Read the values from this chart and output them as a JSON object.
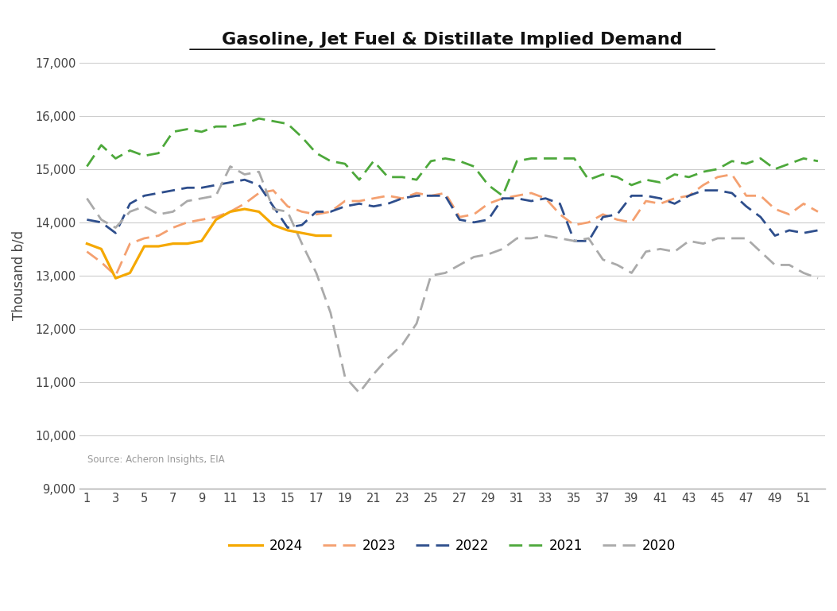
{
  "title": "Gasoline, Jet Fuel & Distillate Implied Demand",
  "ylabel": "Thousand b/d",
  "source_text": "Source: Acheron Insights, EIA",
  "ylim": [
    9000,
    17000
  ],
  "yticks": [
    9000,
    10000,
    11000,
    12000,
    13000,
    14000,
    15000,
    16000,
    17000
  ],
  "xticks": [
    1,
    3,
    5,
    7,
    9,
    11,
    13,
    15,
    17,
    19,
    21,
    23,
    25,
    27,
    29,
    31,
    33,
    35,
    37,
    39,
    41,
    43,
    45,
    47,
    49,
    51
  ],
  "xlim": [
    0.5,
    52.5
  ],
  "series": {
    "2024": {
      "color": "#F5A800",
      "linestyle": "solid",
      "linewidth": 2.3,
      "x": [
        1,
        2,
        3,
        4,
        5,
        6,
        7,
        8,
        9,
        10,
        11,
        12,
        13,
        14,
        15,
        16,
        17,
        18
      ],
      "y": [
        13600,
        13500,
        12950,
        13050,
        13550,
        13550,
        13600,
        13600,
        13650,
        14050,
        14200,
        14250,
        14200,
        13950,
        13850,
        13800,
        13750,
        13750
      ]
    },
    "2023": {
      "color": "#F4A070",
      "linestyle": "dashed",
      "linewidth": 2.0,
      "x": [
        1,
        2,
        3,
        4,
        5,
        6,
        7,
        8,
        9,
        10,
        11,
        12,
        13,
        14,
        15,
        16,
        17,
        18,
        19,
        20,
        21,
        22,
        23,
        24,
        25,
        26,
        27,
        28,
        29,
        30,
        31,
        32,
        33,
        34,
        35,
        36,
        37,
        38,
        39,
        40,
        41,
        42,
        43,
        44,
        45,
        46,
        47,
        48,
        49,
        50,
        51,
        52
      ],
      "y": [
        13450,
        13250,
        13000,
        13600,
        13700,
        13750,
        13900,
        14000,
        14050,
        14100,
        14200,
        14350,
        14550,
        14600,
        14300,
        14200,
        14150,
        14200,
        14400,
        14400,
        14450,
        14500,
        14450,
        14550,
        14500,
        14550,
        14100,
        14150,
        14350,
        14450,
        14500,
        14550,
        14450,
        14150,
        13950,
        14000,
        14150,
        14050,
        14000,
        14400,
        14350,
        14450,
        14500,
        14700,
        14850,
        14900,
        14500,
        14500,
        14250,
        14150,
        14350,
        14200
      ]
    },
    "2022": {
      "color": "#2E4E8C",
      "linestyle": "dashed",
      "linewidth": 2.0,
      "x": [
        1,
        2,
        3,
        4,
        5,
        6,
        7,
        8,
        9,
        10,
        11,
        12,
        13,
        14,
        15,
        16,
        17,
        18,
        19,
        20,
        21,
        22,
        23,
        24,
        25,
        26,
        27,
        28,
        29,
        30,
        31,
        32,
        33,
        34,
        35,
        36,
        37,
        38,
        39,
        40,
        41,
        42,
        43,
        44,
        45,
        46,
        47,
        48,
        49,
        50,
        51,
        52
      ],
      "y": [
        14050,
        14000,
        13800,
        14350,
        14500,
        14550,
        14600,
        14650,
        14650,
        14700,
        14750,
        14800,
        14700,
        14300,
        13900,
        13950,
        14200,
        14200,
        14300,
        14350,
        14300,
        14350,
        14450,
        14500,
        14500,
        14500,
        14050,
        14000,
        14050,
        14450,
        14450,
        14400,
        14450,
        14350,
        13650,
        13650,
        14100,
        14150,
        14500,
        14500,
        14450,
        14350,
        14500,
        14600,
        14600,
        14550,
        14300,
        14100,
        13750,
        13850,
        13800,
        13850
      ]
    },
    "2021": {
      "color": "#4DA83B",
      "linestyle": "dashed",
      "linewidth": 2.0,
      "x": [
        1,
        2,
        3,
        4,
        5,
        6,
        7,
        8,
        9,
        10,
        11,
        12,
        13,
        14,
        15,
        16,
        17,
        18,
        19,
        20,
        21,
        22,
        23,
        24,
        25,
        26,
        27,
        28,
        29,
        30,
        31,
        32,
        33,
        34,
        35,
        36,
        37,
        38,
        39,
        40,
        41,
        42,
        43,
        44,
        45,
        46,
        47,
        48,
        49,
        50,
        51,
        52
      ],
      "y": [
        15050,
        15450,
        15200,
        15350,
        15250,
        15300,
        15700,
        15750,
        15700,
        15800,
        15800,
        15850,
        15950,
        15900,
        15850,
        15600,
        15300,
        15150,
        15100,
        14800,
        15150,
        14850,
        14850,
        14800,
        15150,
        15200,
        15150,
        15050,
        14700,
        14500,
        15150,
        15200,
        15200,
        15200,
        15200,
        14800,
        14900,
        14850,
        14700,
        14800,
        14750,
        14900,
        14850,
        14950,
        15000,
        15150,
        15100,
        15200,
        15000,
        15100,
        15200,
        15150
      ]
    },
    "2020": {
      "color": "#AAAAAA",
      "linestyle": "dashed",
      "linewidth": 2.0,
      "x": [
        1,
        2,
        3,
        4,
        5,
        6,
        7,
        8,
        9,
        10,
        11,
        12,
        13,
        14,
        15,
        16,
        17,
        18,
        19,
        20,
        21,
        22,
        23,
        24,
        25,
        26,
        27,
        28,
        29,
        30,
        31,
        32,
        33,
        34,
        35,
        36,
        37,
        38,
        39,
        40,
        41,
        42,
        43,
        44,
        45,
        46,
        47,
        48,
        49,
        50,
        51,
        52
      ],
      "y": [
        14450,
        14050,
        13900,
        14200,
        14300,
        14150,
        14200,
        14400,
        14450,
        14500,
        15050,
        14900,
        14950,
        14250,
        14200,
        13600,
        13050,
        12300,
        11100,
        10800,
        11150,
        11450,
        11700,
        12100,
        13000,
        13050,
        13200,
        13350,
        13400,
        13500,
        13700,
        13700,
        13750,
        13700,
        13650,
        13700,
        13300,
        13200,
        13050,
        13450,
        13500,
        13450,
        13650,
        13600,
        13700,
        13700,
        13700,
        13450,
        13200,
        13200,
        13050,
        12950
      ]
    }
  },
  "background_color": "#FFFFFF",
  "grid_color": "#CCCCCC",
  "legend_order": [
    "2024",
    "2023",
    "2022",
    "2021",
    "2020"
  ]
}
